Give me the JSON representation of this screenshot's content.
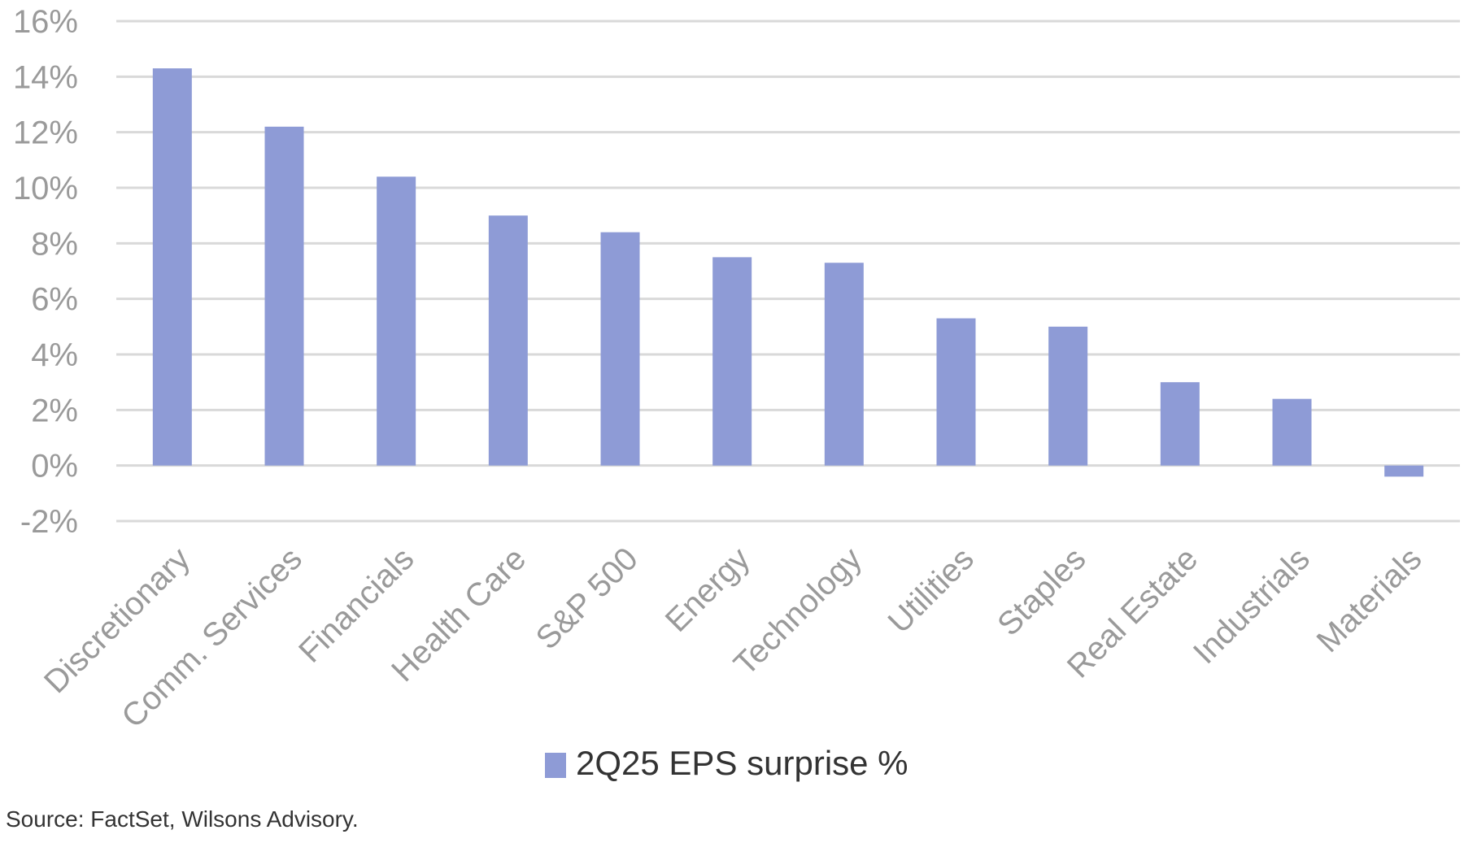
{
  "chart_data": {
    "type": "bar",
    "categories": [
      "Discretionary",
      "Comm. Services",
      "Financials",
      "Health Care",
      "S&P 500",
      "Energy",
      "Technology",
      "Utilities",
      "Staples",
      "Real Estate",
      "Industrials",
      "Materials"
    ],
    "series": [
      {
        "name": "2Q25 EPS surprise %",
        "values": [
          14.3,
          12.2,
          10.4,
          9.0,
          8.4,
          7.5,
          7.3,
          5.3,
          5.0,
          3.0,
          2.4,
          -0.4
        ],
        "color": "#8e9bd6"
      }
    ],
    "y_ticks": [
      "-2%",
      "0%",
      "2%",
      "4%",
      "6%",
      "8%",
      "10%",
      "12%",
      "14%",
      "16%"
    ],
    "ylim": [
      -2,
      16
    ],
    "y_tick_step": 2,
    "grid": true,
    "legend_position": "bottom",
    "colors": {
      "bar": "#8e9bd6",
      "grid": "#d9d9d9",
      "tick_text": "#9a9a9a",
      "legend_text": "#333333"
    }
  },
  "source": "Source: FactSet, Wilsons Advisory."
}
